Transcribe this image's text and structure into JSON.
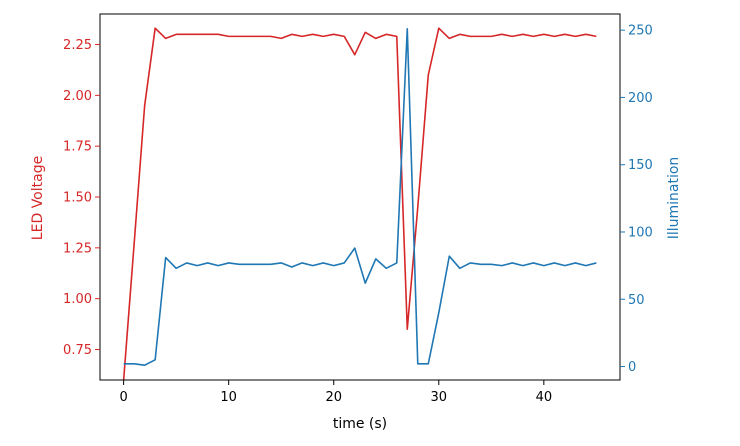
{
  "chart_data": {
    "type": "line",
    "title": "",
    "xlabel": "time (s)",
    "ylabel_left": "LED Voltage",
    "ylabel_right": "Illumination",
    "xlim": [
      -2.25,
      47.25
    ],
    "ylim_left": [
      0.6,
      2.4
    ],
    "ylim_right": [
      -10,
      262
    ],
    "x_ticks": [
      0,
      10,
      20,
      30,
      40
    ],
    "y_ticks_left": [
      "0.75",
      "1.00",
      "1.25",
      "1.50",
      "1.75",
      "2.00",
      "2.25"
    ],
    "y_ticks_right": [
      "0",
      "50",
      "100",
      "150",
      "200",
      "250"
    ],
    "grid": false,
    "colors": {
      "left": "#d62728",
      "right": "#1f77b4",
      "axes": "#000000"
    },
    "x": [
      0,
      1,
      2,
      3,
      4,
      5,
      6,
      7,
      8,
      9,
      10,
      11,
      12,
      13,
      14,
      15,
      16,
      17,
      18,
      19,
      20,
      21,
      22,
      23,
      24,
      25,
      26,
      27,
      28,
      29,
      30,
      31,
      32,
      33,
      34,
      35,
      36,
      37,
      38,
      39,
      40,
      41,
      42,
      43,
      44,
      45
    ],
    "series": [
      {
        "name": "LED Voltage",
        "axis": "left",
        "values": [
          0.6,
          1.27,
          1.95,
          2.33,
          2.28,
          2.3,
          2.3,
          2.3,
          2.3,
          2.3,
          2.29,
          2.29,
          2.29,
          2.29,
          2.29,
          2.28,
          2.3,
          2.29,
          2.3,
          2.29,
          2.3,
          2.29,
          2.2,
          2.31,
          2.28,
          2.3,
          2.29,
          0.85,
          1.45,
          2.1,
          2.33,
          2.28,
          2.3,
          2.29,
          2.29,
          2.29,
          2.3,
          2.29,
          2.3,
          2.29,
          2.3,
          2.29,
          2.3,
          2.29,
          2.3,
          2.29
        ]
      },
      {
        "name": "Illumination",
        "axis": "right",
        "values": [
          2,
          2,
          1,
          5,
          81,
          73,
          77,
          75,
          77,
          75,
          77,
          76,
          76,
          76,
          76,
          77,
          74,
          77,
          75,
          77,
          75,
          77,
          88,
          62,
          80,
          73,
          77,
          251,
          2,
          2,
          40,
          82,
          73,
          77,
          76,
          76,
          75,
          77,
          75,
          77,
          75,
          77,
          75,
          77,
          75,
          77
        ]
      }
    ]
  }
}
